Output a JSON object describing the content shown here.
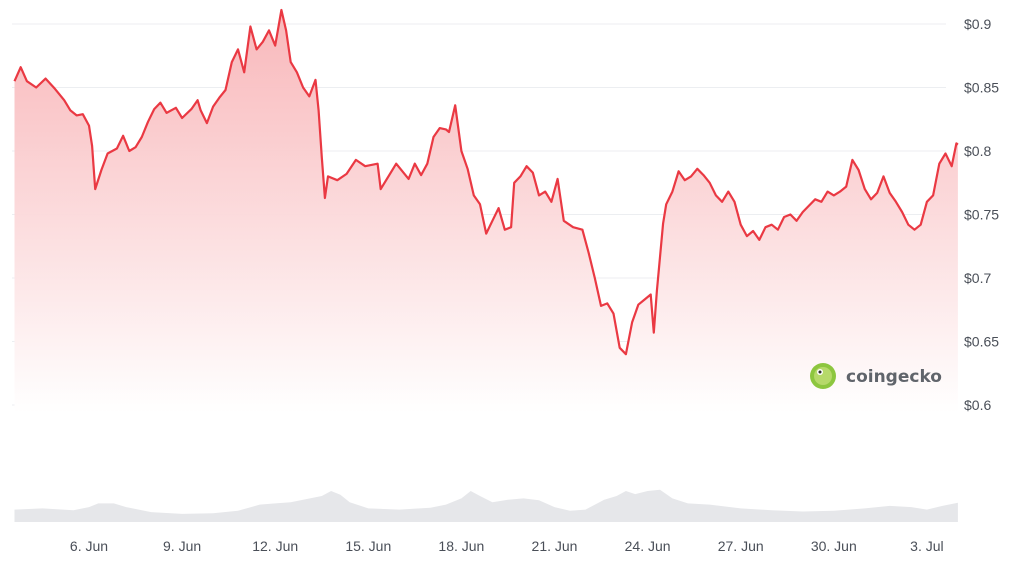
{
  "chart_data": {
    "type": "area",
    "watermark": "coingecko",
    "x_tick_labels": [
      "6. Jun",
      "9. Jun",
      "12. Jun",
      "15. Jun",
      "18. Jun",
      "21. Jun",
      "24. Jun",
      "27. Jun",
      "30. Jun",
      "3. Jul"
    ],
    "y_tick_labels": [
      "$0.9",
      "$0.85",
      "$0.8",
      "$0.75",
      "$0.7",
      "$0.65",
      "$0.6"
    ],
    "y_ticks": [
      0.9,
      0.85,
      0.8,
      0.75,
      0.7,
      0.65,
      0.6
    ],
    "ylim": [
      0.6,
      0.9
    ],
    "xlim_days": [
      3.6,
      34.0
    ],
    "grid": true,
    "colors": {
      "line": "#ea3943",
      "area_top": "#f8b4b7",
      "area_bottom": "#ffffff",
      "volume": "#e6e7ea",
      "grid": "#eceef1",
      "watermark_logo": "#8dc63f"
    },
    "series": [
      {
        "values": [
          [
            3.6,
            0.855
          ],
          [
            3.8,
            0.866
          ],
          [
            4.0,
            0.855
          ],
          [
            4.3,
            0.85
          ],
          [
            4.6,
            0.857
          ],
          [
            4.9,
            0.849
          ],
          [
            5.2,
            0.84
          ],
          [
            5.4,
            0.832
          ],
          [
            5.6,
            0.828
          ],
          [
            5.8,
            0.829
          ],
          [
            6.0,
            0.82
          ],
          [
            6.1,
            0.804
          ],
          [
            6.2,
            0.77
          ],
          [
            6.4,
            0.785
          ],
          [
            6.6,
            0.798
          ],
          [
            6.9,
            0.802
          ],
          [
            7.1,
            0.812
          ],
          [
            7.3,
            0.8
          ],
          [
            7.5,
            0.803
          ],
          [
            7.7,
            0.811
          ],
          [
            7.9,
            0.823
          ],
          [
            8.1,
            0.833
          ],
          [
            8.3,
            0.838
          ],
          [
            8.5,
            0.83
          ],
          [
            8.8,
            0.834
          ],
          [
            9.0,
            0.826
          ],
          [
            9.3,
            0.833
          ],
          [
            9.5,
            0.84
          ],
          [
            9.6,
            0.832
          ],
          [
            9.8,
            0.822
          ],
          [
            10.0,
            0.835
          ],
          [
            10.2,
            0.842
          ],
          [
            10.4,
            0.848
          ],
          [
            10.6,
            0.87
          ],
          [
            10.8,
            0.88
          ],
          [
            11.0,
            0.862
          ],
          [
            11.2,
            0.898
          ],
          [
            11.4,
            0.88
          ],
          [
            11.6,
            0.886
          ],
          [
            11.8,
            0.895
          ],
          [
            12.0,
            0.883
          ],
          [
            12.2,
            0.911
          ],
          [
            12.35,
            0.895
          ],
          [
            12.5,
            0.87
          ],
          [
            12.7,
            0.862
          ],
          [
            12.9,
            0.85
          ],
          [
            13.1,
            0.843
          ],
          [
            13.3,
            0.856
          ],
          [
            13.4,
            0.832
          ],
          [
            13.5,
            0.795
          ],
          [
            13.6,
            0.763
          ],
          [
            13.7,
            0.78
          ],
          [
            14.0,
            0.777
          ],
          [
            14.3,
            0.782
          ],
          [
            14.6,
            0.793
          ],
          [
            14.9,
            0.788
          ],
          [
            15.3,
            0.79
          ],
          [
            15.4,
            0.77
          ],
          [
            15.6,
            0.778
          ],
          [
            15.9,
            0.79
          ],
          [
            16.1,
            0.784
          ],
          [
            16.3,
            0.778
          ],
          [
            16.5,
            0.79
          ],
          [
            16.7,
            0.781
          ],
          [
            16.9,
            0.79
          ],
          [
            17.1,
            0.811
          ],
          [
            17.3,
            0.818
          ],
          [
            17.5,
            0.817
          ],
          [
            17.6,
            0.815
          ],
          [
            17.8,
            0.836
          ],
          [
            18.0,
            0.8
          ],
          [
            18.2,
            0.786
          ],
          [
            18.4,
            0.765
          ],
          [
            18.6,
            0.758
          ],
          [
            18.8,
            0.735
          ],
          [
            19.0,
            0.745
          ],
          [
            19.2,
            0.755
          ],
          [
            19.4,
            0.738
          ],
          [
            19.6,
            0.74
          ],
          [
            19.7,
            0.775
          ],
          [
            19.9,
            0.78
          ],
          [
            20.1,
            0.788
          ],
          [
            20.3,
            0.783
          ],
          [
            20.5,
            0.765
          ],
          [
            20.7,
            0.768
          ],
          [
            20.9,
            0.76
          ],
          [
            21.1,
            0.778
          ],
          [
            21.3,
            0.745
          ],
          [
            21.6,
            0.74
          ],
          [
            21.9,
            0.738
          ],
          [
            22.1,
            0.72
          ],
          [
            22.3,
            0.7
          ],
          [
            22.5,
            0.678
          ],
          [
            22.7,
            0.68
          ],
          [
            22.9,
            0.672
          ],
          [
            23.1,
            0.645
          ],
          [
            23.3,
            0.64
          ],
          [
            23.5,
            0.665
          ],
          [
            23.7,
            0.679
          ],
          [
            23.9,
            0.683
          ],
          [
            24.1,
            0.687
          ],
          [
            24.2,
            0.657
          ],
          [
            24.3,
            0.69
          ],
          [
            24.5,
            0.743
          ],
          [
            24.6,
            0.758
          ],
          [
            24.8,
            0.768
          ],
          [
            25.0,
            0.784
          ],
          [
            25.2,
            0.777
          ],
          [
            25.4,
            0.78
          ],
          [
            25.6,
            0.786
          ],
          [
            25.8,
            0.781
          ],
          [
            26.0,
            0.775
          ],
          [
            26.2,
            0.765
          ],
          [
            26.4,
            0.76
          ],
          [
            26.6,
            0.768
          ],
          [
            26.8,
            0.76
          ],
          [
            27.0,
            0.742
          ],
          [
            27.2,
            0.733
          ],
          [
            27.4,
            0.737
          ],
          [
            27.6,
            0.73
          ],
          [
            27.8,
            0.74
          ],
          [
            28.0,
            0.742
          ],
          [
            28.2,
            0.738
          ],
          [
            28.4,
            0.748
          ],
          [
            28.6,
            0.75
          ],
          [
            28.8,
            0.745
          ],
          [
            29.0,
            0.752
          ],
          [
            29.2,
            0.757
          ],
          [
            29.4,
            0.762
          ],
          [
            29.6,
            0.76
          ],
          [
            29.8,
            0.768
          ],
          [
            30.0,
            0.765
          ],
          [
            30.2,
            0.768
          ],
          [
            30.4,
            0.772
          ],
          [
            30.6,
            0.793
          ],
          [
            30.8,
            0.785
          ],
          [
            31.0,
            0.77
          ],
          [
            31.2,
            0.762
          ],
          [
            31.4,
            0.767
          ],
          [
            31.6,
            0.78
          ],
          [
            31.8,
            0.767
          ],
          [
            32.0,
            0.76
          ],
          [
            32.2,
            0.752
          ],
          [
            32.4,
            0.742
          ],
          [
            32.6,
            0.738
          ],
          [
            32.8,
            0.742
          ],
          [
            33.0,
            0.76
          ],
          [
            33.2,
            0.765
          ],
          [
            33.4,
            0.79
          ],
          [
            33.6,
            0.798
          ],
          [
            33.8,
            0.788
          ],
          [
            33.95,
            0.806
          ],
          [
            34.0,
            0.805
          ]
        ]
      }
    ],
    "volume": {
      "values": [
        [
          3.6,
          0.2
        ],
        [
          4.5,
          0.22
        ],
        [
          5.5,
          0.19
        ],
        [
          6.0,
          0.24
        ],
        [
          6.3,
          0.3
        ],
        [
          6.8,
          0.3
        ],
        [
          7.2,
          0.24
        ],
        [
          8.0,
          0.16
        ],
        [
          9.0,
          0.13
        ],
        [
          10.0,
          0.14
        ],
        [
          10.8,
          0.18
        ],
        [
          11.5,
          0.28
        ],
        [
          12.0,
          0.3
        ],
        [
          12.5,
          0.32
        ],
        [
          13.0,
          0.37
        ],
        [
          13.5,
          0.42
        ],
        [
          13.8,
          0.5
        ],
        [
          14.1,
          0.44
        ],
        [
          14.4,
          0.32
        ],
        [
          15.0,
          0.22
        ],
        [
          16.0,
          0.2
        ],
        [
          17.0,
          0.23
        ],
        [
          17.5,
          0.28
        ],
        [
          18.0,
          0.38
        ],
        [
          18.3,
          0.5
        ],
        [
          18.6,
          0.42
        ],
        [
          19.0,
          0.32
        ],
        [
          19.5,
          0.36
        ],
        [
          20.0,
          0.38
        ],
        [
          20.5,
          0.35
        ],
        [
          21.0,
          0.24
        ],
        [
          21.5,
          0.18
        ],
        [
          22.0,
          0.2
        ],
        [
          22.6,
          0.36
        ],
        [
          23.0,
          0.42
        ],
        [
          23.3,
          0.5
        ],
        [
          23.6,
          0.45
        ],
        [
          24.0,
          0.5
        ],
        [
          24.4,
          0.52
        ],
        [
          24.8,
          0.38
        ],
        [
          25.3,
          0.3
        ],
        [
          26.0,
          0.28
        ],
        [
          27.0,
          0.22
        ],
        [
          28.0,
          0.19
        ],
        [
          29.0,
          0.17
        ],
        [
          30.0,
          0.18
        ],
        [
          31.0,
          0.22
        ],
        [
          31.8,
          0.26
        ],
        [
          32.5,
          0.24
        ],
        [
          33.0,
          0.2
        ],
        [
          33.5,
          0.26
        ],
        [
          34.0,
          0.31
        ]
      ]
    }
  }
}
